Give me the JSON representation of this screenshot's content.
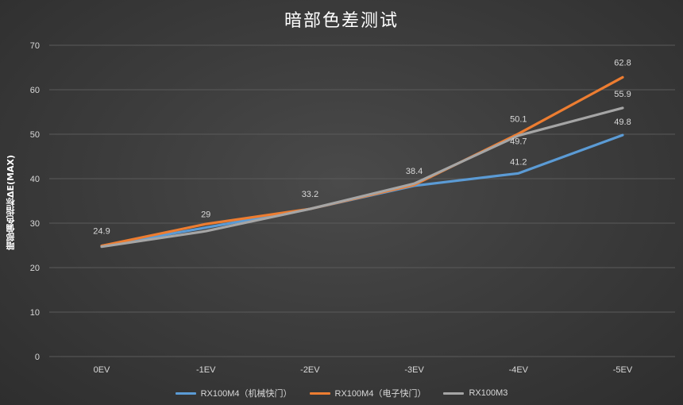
{
  "chart_data": {
    "type": "line",
    "title": "暗部色差测试",
    "ylabel": "暗部偏色指标ΔE(MAX)",
    "xlabel": "",
    "categories": [
      "0EV",
      "-1EV",
      "-2EV",
      "-3EV",
      "-4EV",
      "-5EV"
    ],
    "ylim": [
      0,
      70
    ],
    "yticks": [
      0,
      10,
      20,
      30,
      40,
      50,
      60,
      70
    ],
    "grid": true,
    "legend_position": "bottom",
    "series": [
      {
        "name": "RX100M4（机械快门）",
        "color": "#5b9bd5",
        "values": [
          24.9,
          29,
          33.2,
          38.4,
          41.2,
          49.8
        ]
      },
      {
        "name": "RX100M4（电子快门）",
        "color": "#ed7d31",
        "values": [
          24.9,
          29.8,
          33.2,
          38.6,
          50.1,
          62.8
        ]
      },
      {
        "name": "RX100M3",
        "color": "#a5a5a5",
        "values": [
          24.7,
          28.2,
          33.2,
          38.9,
          49.7,
          55.9
        ]
      }
    ],
    "data_labels": [
      {
        "text": "24.9",
        "series": 0,
        "index": 0
      },
      {
        "text": "29",
        "series": 0,
        "index": 1
      },
      {
        "text": "33.2",
        "series": 0,
        "index": 2
      },
      {
        "text": "38.4",
        "series": 0,
        "index": 3
      },
      {
        "text": "41.2",
        "series": 0,
        "index": 4
      },
      {
        "text": "49.8",
        "series": 0,
        "index": 5
      },
      {
        "text": "50.1",
        "series": 1,
        "index": 4
      },
      {
        "text": "62.8",
        "series": 1,
        "index": 5
      },
      {
        "text": "49.7",
        "series": 2,
        "index": 4
      },
      {
        "text": "55.9",
        "series": 2,
        "index": 5
      }
    ]
  }
}
